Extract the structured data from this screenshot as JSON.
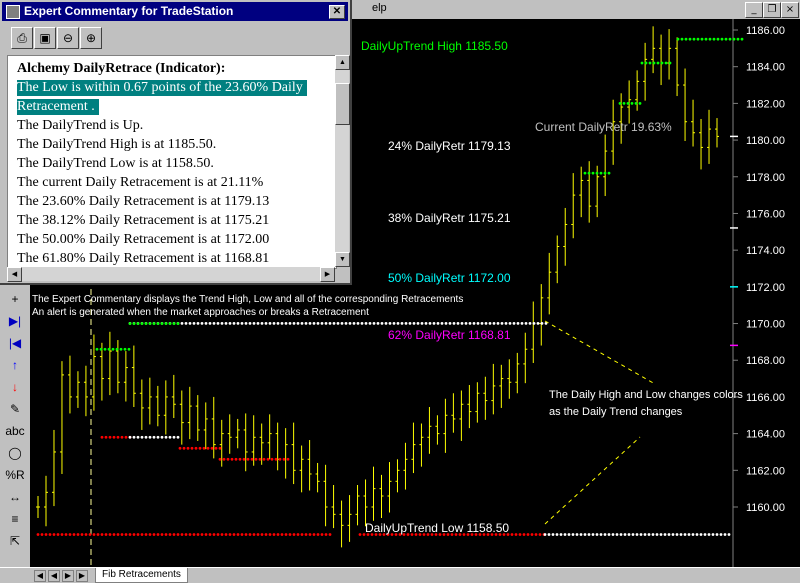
{
  "window": {
    "title_tail": "elp",
    "controls": [
      "_",
      "❐",
      "×"
    ]
  },
  "popup": {
    "title": "Expert Commentary for TradeStation",
    "header": "Alchemy DailyRetrace (Indicator):",
    "highlight": [
      "The Low is within 0.67 points of the 23.60% Daily",
      "Retracement ."
    ],
    "lines": [
      "The DailyTrend is Up.",
      "The DailyTrend High is at 1185.50.",
      "The DailyTrend Low is at 1158.50.",
      "The current Daily Retracement is at 21.11%",
      "The 23.60% Daily Retracement is at 1179.13",
      "The 38.12% Daily Retracement is at 1175.21",
      "The 50.00% Daily Retracement is at 1172.00",
      "The 61.80% Daily Retracement is at 1168.81"
    ],
    "toolbar_icons": [
      "printer-icon",
      "save-icon",
      "zoom-out-icon",
      "zoom-in-icon"
    ]
  },
  "toolbar": {
    "tools": [
      {
        "name": "cross-icon",
        "glyph": "+"
      },
      {
        "name": "next-bar-icon",
        "glyph": "▶|"
      },
      {
        "name": "prev-bar-icon",
        "glyph": "|◀"
      },
      {
        "name": "up-arrow-icon",
        "glyph": "↑"
      },
      {
        "name": "down-arrow-icon",
        "glyph": "↓"
      },
      {
        "name": "pencil-icon",
        "glyph": "✎"
      },
      {
        "name": "text-icon",
        "glyph": "abc"
      },
      {
        "name": "ellipse-icon",
        "glyph": "◯"
      },
      {
        "name": "percent-r-icon",
        "glyph": "%R"
      },
      {
        "name": "horizontal-arrow-icon",
        "glyph": "↔"
      },
      {
        "name": "hamburger-icon",
        "glyph": "≡"
      },
      {
        "name": "cursor-icon",
        "glyph": "⇱"
      }
    ]
  },
  "status": {
    "tab_label": "Fib Retracements"
  },
  "chart_data": {
    "type": "ohlc",
    "colors": {
      "bars": "#ffff00",
      "up_trend": "#00ff00",
      "down_trend": "#ff0000",
      "neutral": "#ffffff",
      "retr_50": "#00ffff",
      "retr_62": "#ff00ff",
      "commentary_text": "#ffffff"
    },
    "ylim": [
      1158.5,
      1186.5
    ],
    "yticks": [
      1160.0,
      1162.0,
      1164.0,
      1166.0,
      1168.0,
      1170.0,
      1172.0,
      1174.0,
      1176.0,
      1178.0,
      1180.0,
      1182.0,
      1184.0,
      1186.0
    ],
    "annotations": {
      "uptrend_high": "DailyUpTrend High 1185.50",
      "uptrend_low": "DailyUpTrend Low 1158.50",
      "current_retr": "Current DailyRetr 19.63%",
      "retr_24": "24% DailyRetr 1179.13",
      "retr_38": "38% DailyRetr 1175.21",
      "retr_50": "50% DailyRetr 1172.00",
      "retr_62": "62% DailyRetr 1168.81",
      "note_line1": "The Expert Commentary displays the Trend High, Low and all of the corresponding Retracements",
      "note_line2": "An alert is generated when the market approaches or breaks a Retracement",
      "color_note_line1": "The Daily High and Low changes colors",
      "color_note_line2": "as the Daily Trend changes"
    },
    "levels": {
      "high": 1185.5,
      "low": 1158.5,
      "retr_24": 1179.13,
      "retr_38": 1175.21,
      "retr_50": 1172.0,
      "retr_62": 1168.81,
      "current_retr_price": 1180.2
    },
    "bars_close": [
      1160.0,
      1160.8,
      1163.0,
      1167.2,
      1166.0,
      1166.8,
      1166.0,
      1168.2,
      1167.0,
      1168.5,
      1166.8,
      1167.6,
      1166.2,
      1165.4,
      1166.0,
      1165.0,
      1166.0,
      1165.6,
      1164.6,
      1165.5,
      1164.2,
      1164.8,
      1163.4,
      1164.0,
      1163.8,
      1164.2,
      1163.0,
      1163.8,
      1163.5,
      1164.0,
      1162.6,
      1163.4,
      1162.0,
      1162.6,
      1161.8,
      1161.4,
      1160.0,
      1159.6,
      1159.0,
      1159.6,
      1160.6,
      1160.0,
      1161.0,
      1160.6,
      1161.4,
      1162.0,
      1162.6,
      1163.4,
      1163.8,
      1164.4,
      1164.0,
      1165.0,
      1164.8,
      1165.6,
      1165.2,
      1166.2,
      1165.8,
      1166.6,
      1167.0,
      1166.8,
      1167.8,
      1168.6,
      1170.0,
      1171.4,
      1172.8,
      1174.2,
      1175.4,
      1177.0,
      1177.8,
      1176.4,
      1178.0,
      1179.4,
      1181.0,
      1181.8,
      1182.2,
      1183.2,
      1184.4,
      1185.0,
      1184.2,
      1185.0,
      1183.0,
      1181.0,
      1180.4,
      1179.6,
      1180.6,
      1180.2
    ]
  }
}
